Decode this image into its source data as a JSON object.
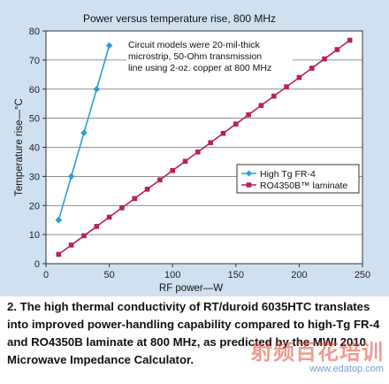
{
  "chart_data": {
    "type": "line",
    "title": "Power versus temperature rise, 800 MHz",
    "xlabel": "RF power—W",
    "ylabel": "Temperature rise—°C",
    "xlim": [
      0,
      250
    ],
    "ylim": [
      0,
      80
    ],
    "x_ticks": [
      "0",
      "50",
      "100",
      "150",
      "200",
      "250"
    ],
    "y_ticks": [
      "0",
      "10",
      "20",
      "30",
      "40",
      "50",
      "60",
      "70",
      "80"
    ],
    "grid": "horizontal",
    "legend_position": "right",
    "annotation": [
      "Circuit models were 20-mil-thick",
      "microstrip, 50-Ohm transmission",
      "line using 2-oz. copper at 800 MHz"
    ],
    "series": [
      {
        "name": "High Tg FR-4",
        "color": "#2a9fd6",
        "marker": "diamond",
        "x": [
          10,
          20,
          30,
          40,
          50
        ],
        "y": [
          15,
          30,
          45,
          60,
          75
        ]
      },
      {
        "name": "RO4350B™ laminate",
        "color": "#b7215e",
        "marker": "square",
        "x": [
          10,
          20,
          30,
          40,
          50,
          60,
          70,
          80,
          90,
          100,
          110,
          120,
          130,
          140,
          150,
          160,
          170,
          180,
          190,
          200,
          210,
          220,
          230,
          240
        ],
        "y": [
          3.2,
          6.4,
          9.6,
          12.8,
          16,
          19.2,
          22.4,
          25.6,
          28.8,
          32,
          35.2,
          38.4,
          41.6,
          44.8,
          48,
          51.2,
          54.4,
          57.6,
          60.8,
          64,
          67.2,
          70.4,
          73.6,
          76.8
        ]
      }
    ]
  },
  "caption": "2. The high thermal conductivity of RT/duroid 6035HTC translates into improved power-handling capability compared to high-Tg FR-4 and RO4350B laminate at 800 MHz, as predicted by the MWI 2010 Microwave Impedance Calculator.",
  "watermark": {
    "text_cn": "射频百花培训",
    "url": "www.edatop.com"
  }
}
